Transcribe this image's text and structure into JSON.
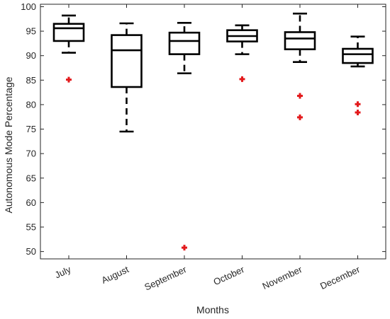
{
  "chart_data": {
    "type": "box",
    "xlabel": "Months",
    "ylabel": "Autonomous Mode Percentage",
    "ylim": [
      48.5,
      100.5
    ],
    "yticks": [
      50,
      55,
      60,
      65,
      70,
      75,
      80,
      85,
      90,
      95,
      100
    ],
    "grid": false,
    "colors": {
      "box": "#000000",
      "outlier": "#e31a1c",
      "axis": "#262626"
    },
    "categories": [
      "July",
      "August",
      "September",
      "October",
      "November",
      "December"
    ],
    "boxes": [
      {
        "label": "July",
        "whisker_low": 90.6,
        "q1": 93.0,
        "median": 95.6,
        "q3": 96.5,
        "whisker_high": 98.2,
        "outliers": [
          85.1
        ]
      },
      {
        "label": "August",
        "whisker_low": 74.5,
        "q1": 83.6,
        "median": 91.1,
        "q3": 94.2,
        "whisker_high": 96.6,
        "outliers": []
      },
      {
        "label": "September",
        "whisker_low": 86.4,
        "q1": 90.3,
        "median": 93.0,
        "q3": 94.7,
        "whisker_high": 96.7,
        "outliers": [
          50.8
        ]
      },
      {
        "label": "October",
        "whisker_low": 90.3,
        "q1": 92.9,
        "median": 94.0,
        "q3": 95.2,
        "whisker_high": 96.2,
        "outliers": [
          85.2
        ]
      },
      {
        "label": "November",
        "whisker_low": 88.7,
        "q1": 91.3,
        "median": 93.5,
        "q3": 94.8,
        "whisker_high": 98.6,
        "outliers": [
          81.8,
          77.4
        ]
      },
      {
        "label": "December",
        "whisker_low": 87.8,
        "q1": 88.5,
        "median": 90.3,
        "q3": 91.4,
        "whisker_high": 93.9,
        "outliers": [
          80.1,
          78.4
        ]
      }
    ]
  }
}
